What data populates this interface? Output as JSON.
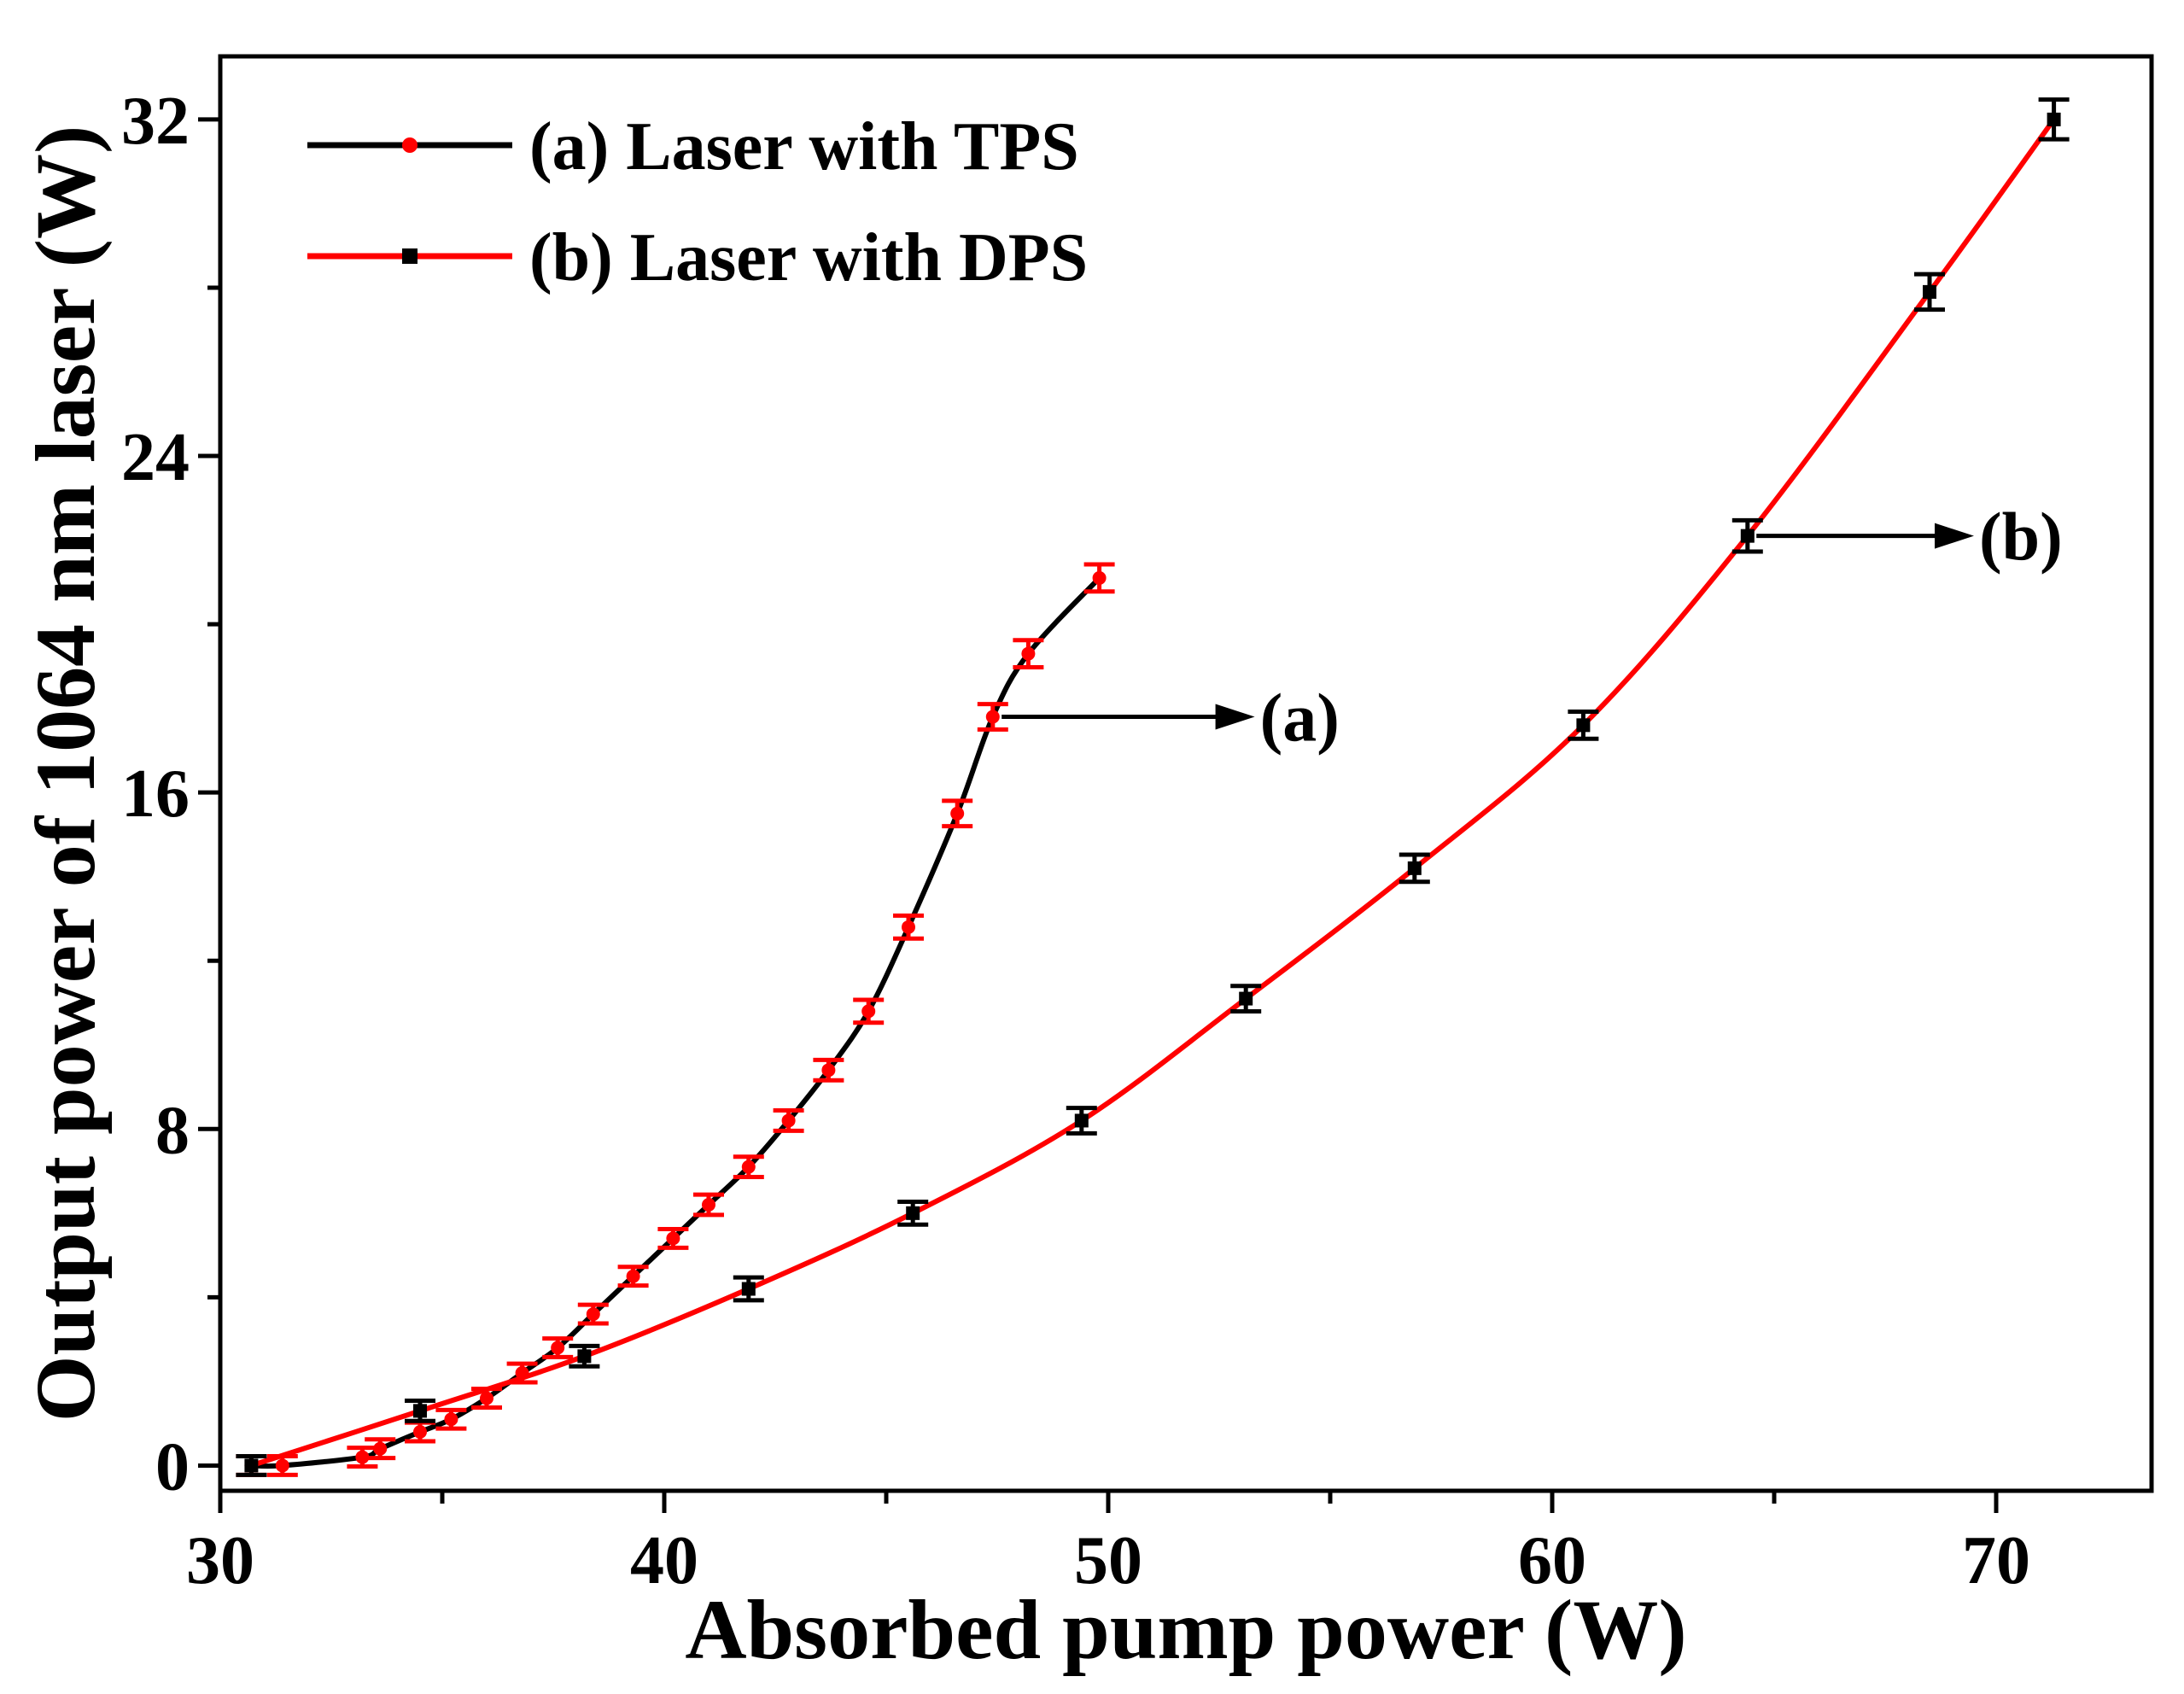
{
  "chart_data": {
    "type": "line",
    "title": "",
    "xlabel": "Absorbed pump power (W)",
    "ylabel": "Output power of 1064 nm laser (W)",
    "xlim": [
      30,
      73.5
    ],
    "ylim": [
      -0.6,
      33.5
    ],
    "xticks": [
      30,
      40,
      50,
      60,
      70
    ],
    "xtick_labels": [
      "30",
      "40",
      "50",
      "60",
      "70"
    ],
    "yticks": [
      0,
      8,
      16,
      24,
      32
    ],
    "ytick_labels": [
      "0",
      "8",
      "16",
      "24",
      "32"
    ],
    "grid": false,
    "legend_position": "top-left",
    "series": [
      {
        "name": "(a) Laser with TPS",
        "line_color": "#000000",
        "marker_color": "#ff0000",
        "marker": "circle",
        "x": [
          30.7,
          31.4,
          33.2,
          33.6,
          34.5,
          35.2,
          36.0,
          36.8,
          37.6,
          38.4,
          39.3,
          40.2,
          41.0,
          41.9,
          42.8,
          43.7,
          44.6,
          45.5,
          46.6,
          47.4,
          48.2,
          49.8
        ],
        "y": [
          0.0,
          0.0,
          0.2,
          0.4,
          0.8,
          1.1,
          1.6,
          2.2,
          2.8,
          3.6,
          4.5,
          5.4,
          6.2,
          7.1,
          8.2,
          9.4,
          10.8,
          12.8,
          15.5,
          17.8,
          19.3,
          21.1
        ],
        "error": [
          0.1,
          0.1,
          0.1,
          0.1,
          0.1,
          0.1,
          0.1,
          0.1,
          0.1,
          0.1,
          0.1,
          0.1,
          0.12,
          0.12,
          0.12,
          0.12,
          0.15,
          0.15,
          0.18,
          0.18,
          0.2,
          0.2
        ]
      },
      {
        "name": "(b) Laser with DPS",
        "line_color": "#ff0000",
        "marker_color": "#000000",
        "marker": "square",
        "x": [
          30.7,
          34.5,
          38.2,
          41.9,
          45.6,
          49.4,
          53.1,
          56.9,
          60.7,
          64.4,
          68.5,
          71.3
        ],
        "y": [
          0.0,
          1.3,
          2.6,
          4.2,
          6.0,
          8.2,
          11.1,
          14.2,
          17.6,
          22.1,
          27.9,
          32.0
        ],
        "error": [
          0.1,
          0.12,
          0.12,
          0.15,
          0.15,
          0.18,
          0.18,
          0.2,
          0.2,
          0.25,
          0.3,
          0.35
        ]
      }
    ],
    "annotations": [
      {
        "label": "(a)",
        "from_x": 47.6,
        "from_y": 17.8,
        "to_x": 53.3,
        "to_y": 17.8
      },
      {
        "label": "(b)",
        "from_x": 64.6,
        "from_y": 22.1,
        "to_x": 69.5,
        "to_y": 22.1
      }
    ]
  }
}
